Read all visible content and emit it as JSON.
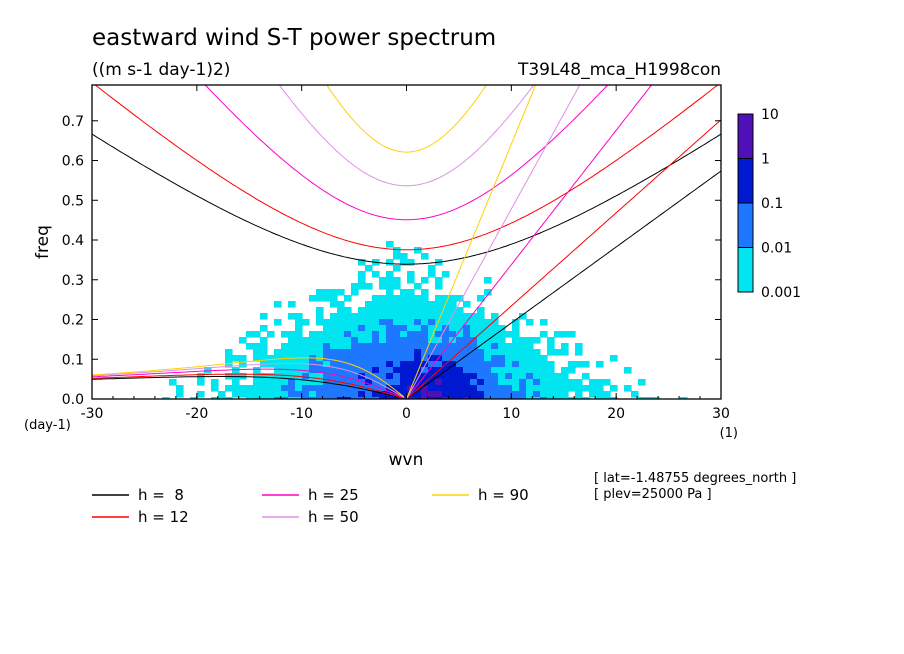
{
  "chart_data": {
    "type": "heatmap",
    "title": "eastward wind S-T power spectrum",
    "units": "((m s-1 day-1)2)",
    "run_name": "T39L48_mca_H1998con",
    "xlabel": "wvn",
    "ylabel": "freq",
    "x_unit_label": "(1)",
    "y_unit_label": "(day-1)",
    "xlim": [
      -30,
      30
    ],
    "ylim": [
      0,
      0.79
    ],
    "xticks": [
      -30,
      -20,
      -10,
      0,
      10,
      20,
      30
    ],
    "yticks": [
      0.0,
      0.1,
      0.2,
      0.3,
      0.4,
      0.5,
      0.6,
      0.7
    ],
    "xtick_labels": [
      "-30",
      "-20",
      "-10",
      "0",
      "10",
      "20",
      "30"
    ],
    "ytick_labels": [
      "0.0",
      "0.1",
      "0.2",
      "0.3",
      "0.4",
      "0.5",
      "0.6",
      "0.7"
    ],
    "colorbar": {
      "levels": [
        "0.001",
        "0.01",
        "0.1",
        "1",
        "10"
      ],
      "colors": [
        "#00e5f0",
        "#1e78ff",
        "#0018d0",
        "#5010b8"
      ]
    },
    "dispersion_curves": [
      {
        "name": "h =  8",
        "label": "h =  8",
        "equivalent_depth_m": 8,
        "color": "#000000"
      },
      {
        "name": "h = 12",
        "label": "h = 12",
        "equivalent_depth_m": 12,
        "color": "#ff0000"
      },
      {
        "name": "h = 25",
        "label": "h = 25",
        "equivalent_depth_m": 25,
        "color": "#ff00c8"
      },
      {
        "name": "h = 50",
        "label": "h = 50",
        "equivalent_depth_m": 50,
        "color": "#e090e8"
      },
      {
        "name": "h = 90",
        "label": "h = 90",
        "equivalent_depth_m": 90,
        "color": "#ffd000"
      }
    ],
    "annotations": [
      "[ lat=-1.48755 degrees_north ]",
      "[ plev=25000 Pa ]"
    ],
    "grid": false,
    "legend_position": "bottom"
  }
}
